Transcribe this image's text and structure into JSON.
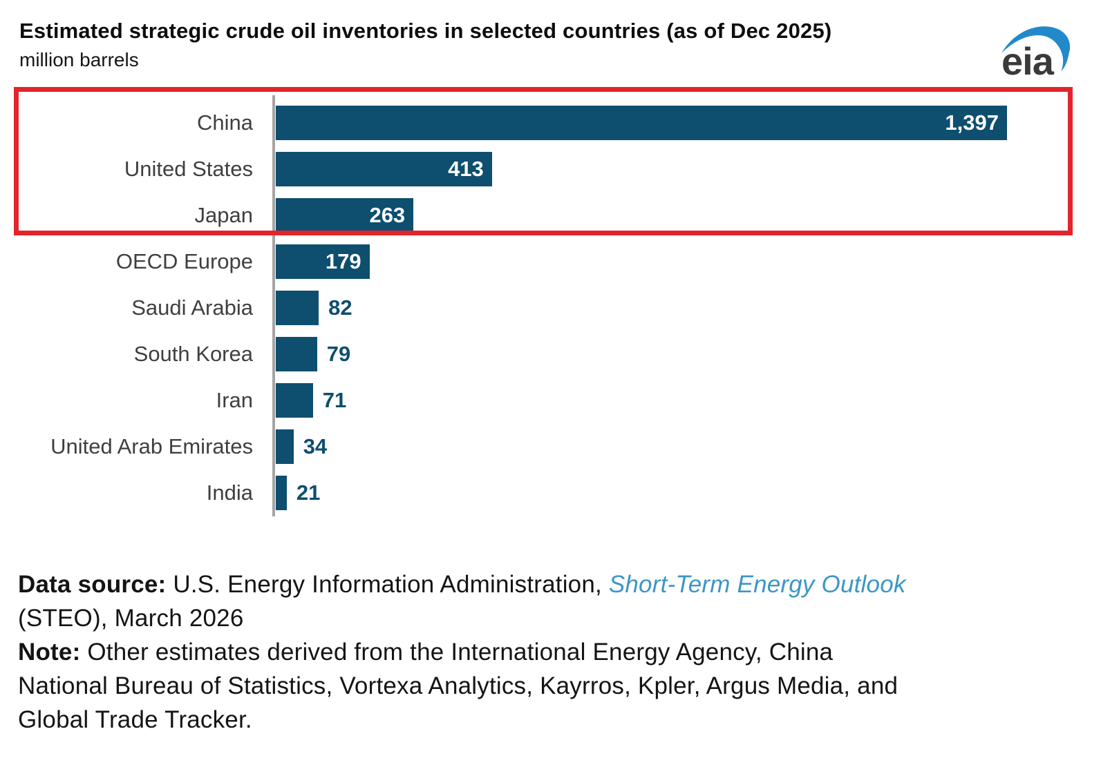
{
  "header": {
    "title": "Estimated strategic crude oil inventories in selected countries (as of Dec 2025)",
    "subtitle": "million barrels",
    "logo_text": "eia"
  },
  "chart_data": {
    "type": "bar",
    "orientation": "horizontal",
    "title": "Estimated strategic crude oil inventories in selected countries (as of Dec 2025)",
    "unit_label": "million barrels",
    "categories": [
      "China",
      "United States",
      "Japan",
      "OECD Europe",
      "Saudi Arabia",
      "South Korea",
      "Iran",
      "United Arab Emirates",
      "India"
    ],
    "values": [
      1397,
      413,
      263,
      179,
      82,
      79,
      71,
      34,
      21
    ],
    "value_labels": [
      "1,397",
      "413",
      "263",
      "179",
      "82",
      "79",
      "71",
      "34",
      "21"
    ],
    "xlim": [
      0,
      1400
    ],
    "grid": false,
    "legend": "none",
    "bar_color": "#0e4e6f",
    "inside_label_min_value": 100,
    "highlight": {
      "note": "red rectangle drawn around top three bars",
      "rows": [
        "China",
        "United States",
        "Japan"
      ],
      "color": "#e1252b"
    }
  },
  "footer": {
    "source_label": "Data source:",
    "source_text": " U.S. Energy Information Administration, ",
    "source_link": "Short-Term Energy Outlook",
    "source_line2": "(STEO), March 2026",
    "note_label": "Note:",
    "note_text1": " Other estimates derived from the International Energy Agency, China",
    "note_line2": "National Bureau of Statistics, Vortexa Analytics, Kayrros, Kpler, Argus Media, and",
    "note_line3": "Global Trade Tracker."
  },
  "colors": {
    "bar": "#0e4e6f",
    "highlight_red": "#e1252b",
    "axis_gray": "#a5a5a5",
    "link_blue": "#3d96c5",
    "logo_blue": "#2289cb"
  }
}
